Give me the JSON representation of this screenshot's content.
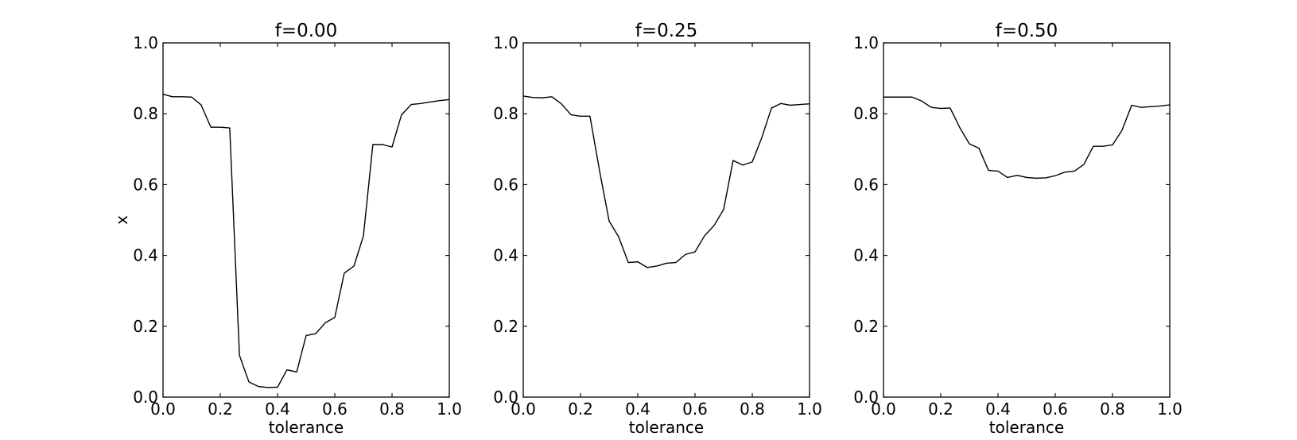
{
  "chart_data": [
    {
      "type": "line",
      "title": "f=0.00",
      "xlabel": "tolerance",
      "ylabel": "x",
      "xlim": [
        0,
        1
      ],
      "ylim": [
        0,
        1
      ],
      "xticks": [
        "0.0",
        "0.2",
        "0.4",
        "0.6",
        "0.8",
        "1.0"
      ],
      "yticks": [
        "0.0",
        "0.2",
        "0.4",
        "0.6",
        "0.8",
        "1.0"
      ],
      "grid": false,
      "series": [
        {
          "x": [
            0.0,
            0.033,
            0.067,
            0.1,
            0.133,
            0.167,
            0.2,
            0.233,
            0.267,
            0.3,
            0.333,
            0.367,
            0.4,
            0.433,
            0.467,
            0.5,
            0.533,
            0.567,
            0.6,
            0.633,
            0.667,
            0.7,
            0.733,
            0.767,
            0.8,
            0.833,
            0.867,
            0.9,
            0.933,
            0.967,
            1.0
          ],
          "y": [
            0.855,
            0.848,
            0.848,
            0.847,
            0.825,
            0.762,
            0.762,
            0.76,
            0.118,
            0.043,
            0.03,
            0.027,
            0.028,
            0.077,
            0.071,
            0.174,
            0.179,
            0.21,
            0.225,
            0.35,
            0.37,
            0.455,
            0.713,
            0.713,
            0.706,
            0.797,
            0.826,
            0.829,
            0.833,
            0.837,
            0.84
          ]
        }
      ]
    },
    {
      "type": "line",
      "title": "f=0.25",
      "xlabel": "tolerance",
      "ylabel": "",
      "xlim": [
        0,
        1
      ],
      "ylim": [
        0,
        1
      ],
      "xticks": [
        "0.0",
        "0.2",
        "0.4",
        "0.6",
        "0.8",
        "1.0"
      ],
      "yticks": [
        "0.0",
        "0.2",
        "0.4",
        "0.6",
        "0.8",
        "1.0"
      ],
      "grid": false,
      "series": [
        {
          "x": [
            0.0,
            0.033,
            0.067,
            0.1,
            0.133,
            0.167,
            0.2,
            0.233,
            0.267,
            0.3,
            0.333,
            0.367,
            0.4,
            0.433,
            0.467,
            0.5,
            0.533,
            0.567,
            0.6,
            0.633,
            0.667,
            0.7,
            0.733,
            0.767,
            0.8,
            0.833,
            0.867,
            0.9,
            0.933,
            0.967,
            1.0
          ],
          "y": [
            0.85,
            0.846,
            0.845,
            0.848,
            0.828,
            0.797,
            0.793,
            0.793,
            0.637,
            0.497,
            0.453,
            0.38,
            0.382,
            0.366,
            0.37,
            0.378,
            0.38,
            0.403,
            0.41,
            0.455,
            0.485,
            0.53,
            0.668,
            0.655,
            0.664,
            0.732,
            0.816,
            0.829,
            0.824,
            0.826,
            0.828
          ]
        }
      ]
    },
    {
      "type": "line",
      "title": "f=0.50",
      "xlabel": "tolerance",
      "ylabel": "",
      "xlim": [
        0,
        1
      ],
      "ylim": [
        0,
        1
      ],
      "xticks": [
        "0.0",
        "0.2",
        "0.4",
        "0.6",
        "0.8",
        "1.0"
      ],
      "yticks": [
        "0.0",
        "0.2",
        "0.4",
        "0.6",
        "0.8",
        "1.0"
      ],
      "grid": false,
      "series": [
        {
          "x": [
            0.0,
            0.033,
            0.067,
            0.1,
            0.133,
            0.167,
            0.2,
            0.233,
            0.267,
            0.3,
            0.333,
            0.367,
            0.4,
            0.433,
            0.467,
            0.5,
            0.533,
            0.567,
            0.6,
            0.633,
            0.667,
            0.7,
            0.733,
            0.767,
            0.8,
            0.833,
            0.867,
            0.9,
            0.933,
            0.967,
            1.0
          ],
          "y": [
            0.847,
            0.847,
            0.847,
            0.847,
            0.836,
            0.818,
            0.815,
            0.816,
            0.76,
            0.715,
            0.703,
            0.64,
            0.638,
            0.62,
            0.626,
            0.62,
            0.618,
            0.619,
            0.625,
            0.635,
            0.638,
            0.657,
            0.708,
            0.708,
            0.712,
            0.753,
            0.824,
            0.818,
            0.82,
            0.822,
            0.825
          ]
        }
      ]
    }
  ]
}
